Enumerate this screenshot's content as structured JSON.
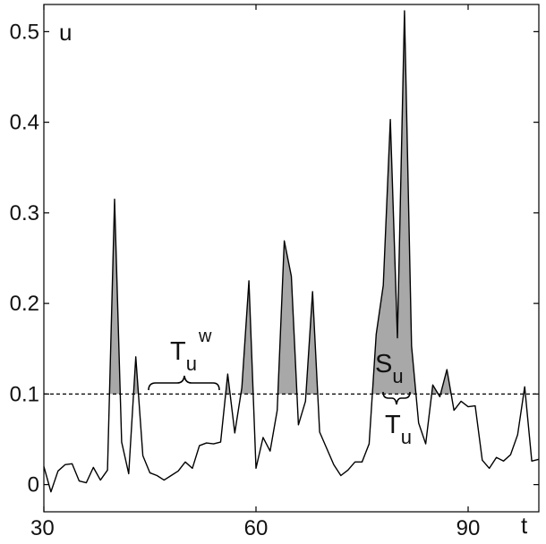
{
  "chart_data": {
    "type": "line",
    "title": "",
    "xlabel": "t",
    "ylabel": "u",
    "xlim": [
      30,
      100
    ],
    "ylim": [
      -0.03,
      0.53
    ],
    "xticks": [
      30,
      60,
      90
    ],
    "xtick_labels": [
      "30",
      "60",
      "90"
    ],
    "yticks": [
      0,
      0.1,
      0.2,
      0.3,
      0.4,
      0.5
    ],
    "ytick_labels": [
      "0",
      "0.1",
      "0.2",
      "0.3",
      "0.4",
      "0.5"
    ],
    "grid": false,
    "threshold": 0.1,
    "fill_color": "#a8a8a8",
    "line_color": "#000000",
    "series": [
      {
        "x": [
          30,
          31,
          32,
          33,
          34,
          35,
          36,
          37,
          38,
          39,
          40,
          41,
          42,
          43,
          44,
          45,
          46,
          47,
          48,
          49,
          50,
          51,
          52,
          53,
          54,
          55,
          56,
          57,
          58,
          59,
          60,
          61,
          62,
          63,
          64,
          65,
          66,
          67,
          68,
          69,
          70,
          71,
          72,
          73,
          74,
          75,
          76,
          77,
          78,
          79,
          80,
          81,
          82,
          83,
          84,
          85,
          86,
          87,
          88,
          89,
          90,
          91,
          92,
          93,
          94,
          95,
          96,
          97,
          98,
          99,
          100
        ],
        "y": [
          0.02,
          -0.008,
          0.015,
          0.022,
          0.023,
          0.004,
          0.002,
          0.019,
          0.005,
          0.016,
          0.315,
          0.047,
          0.012,
          0.141,
          0.032,
          0.013,
          0.01,
          0.005,
          0.01,
          0.015,
          0.025,
          0.018,
          0.043,
          0.046,
          0.045,
          0.047,
          0.122,
          0.057,
          0.107,
          0.225,
          0.018,
          0.052,
          0.037,
          0.082,
          0.269,
          0.23,
          0.066,
          0.092,
          0.213,
          0.058,
          0.04,
          0.022,
          0.01,
          0.016,
          0.025,
          0.025,
          0.045,
          0.166,
          0.22,
          0.403,
          0.162,
          0.523,
          0.153,
          0.068,
          0.045,
          0.11,
          0.097,
          0.127,
          0.082,
          0.092,
          0.086,
          0.087,
          0.027,
          0.018,
          0.03,
          0.026,
          0.033,
          0.055,
          0.108,
          0.026,
          0.028
        ]
      }
    ],
    "annotations": {
      "ylabel_text": "u",
      "xlabel_text": "t",
      "tuw_main": "T",
      "tuw_sub": "u",
      "tuw_sup": "w",
      "su_main": "S",
      "su_sub": "u",
      "tu_main": "T",
      "tu_sub": "u"
    }
  }
}
